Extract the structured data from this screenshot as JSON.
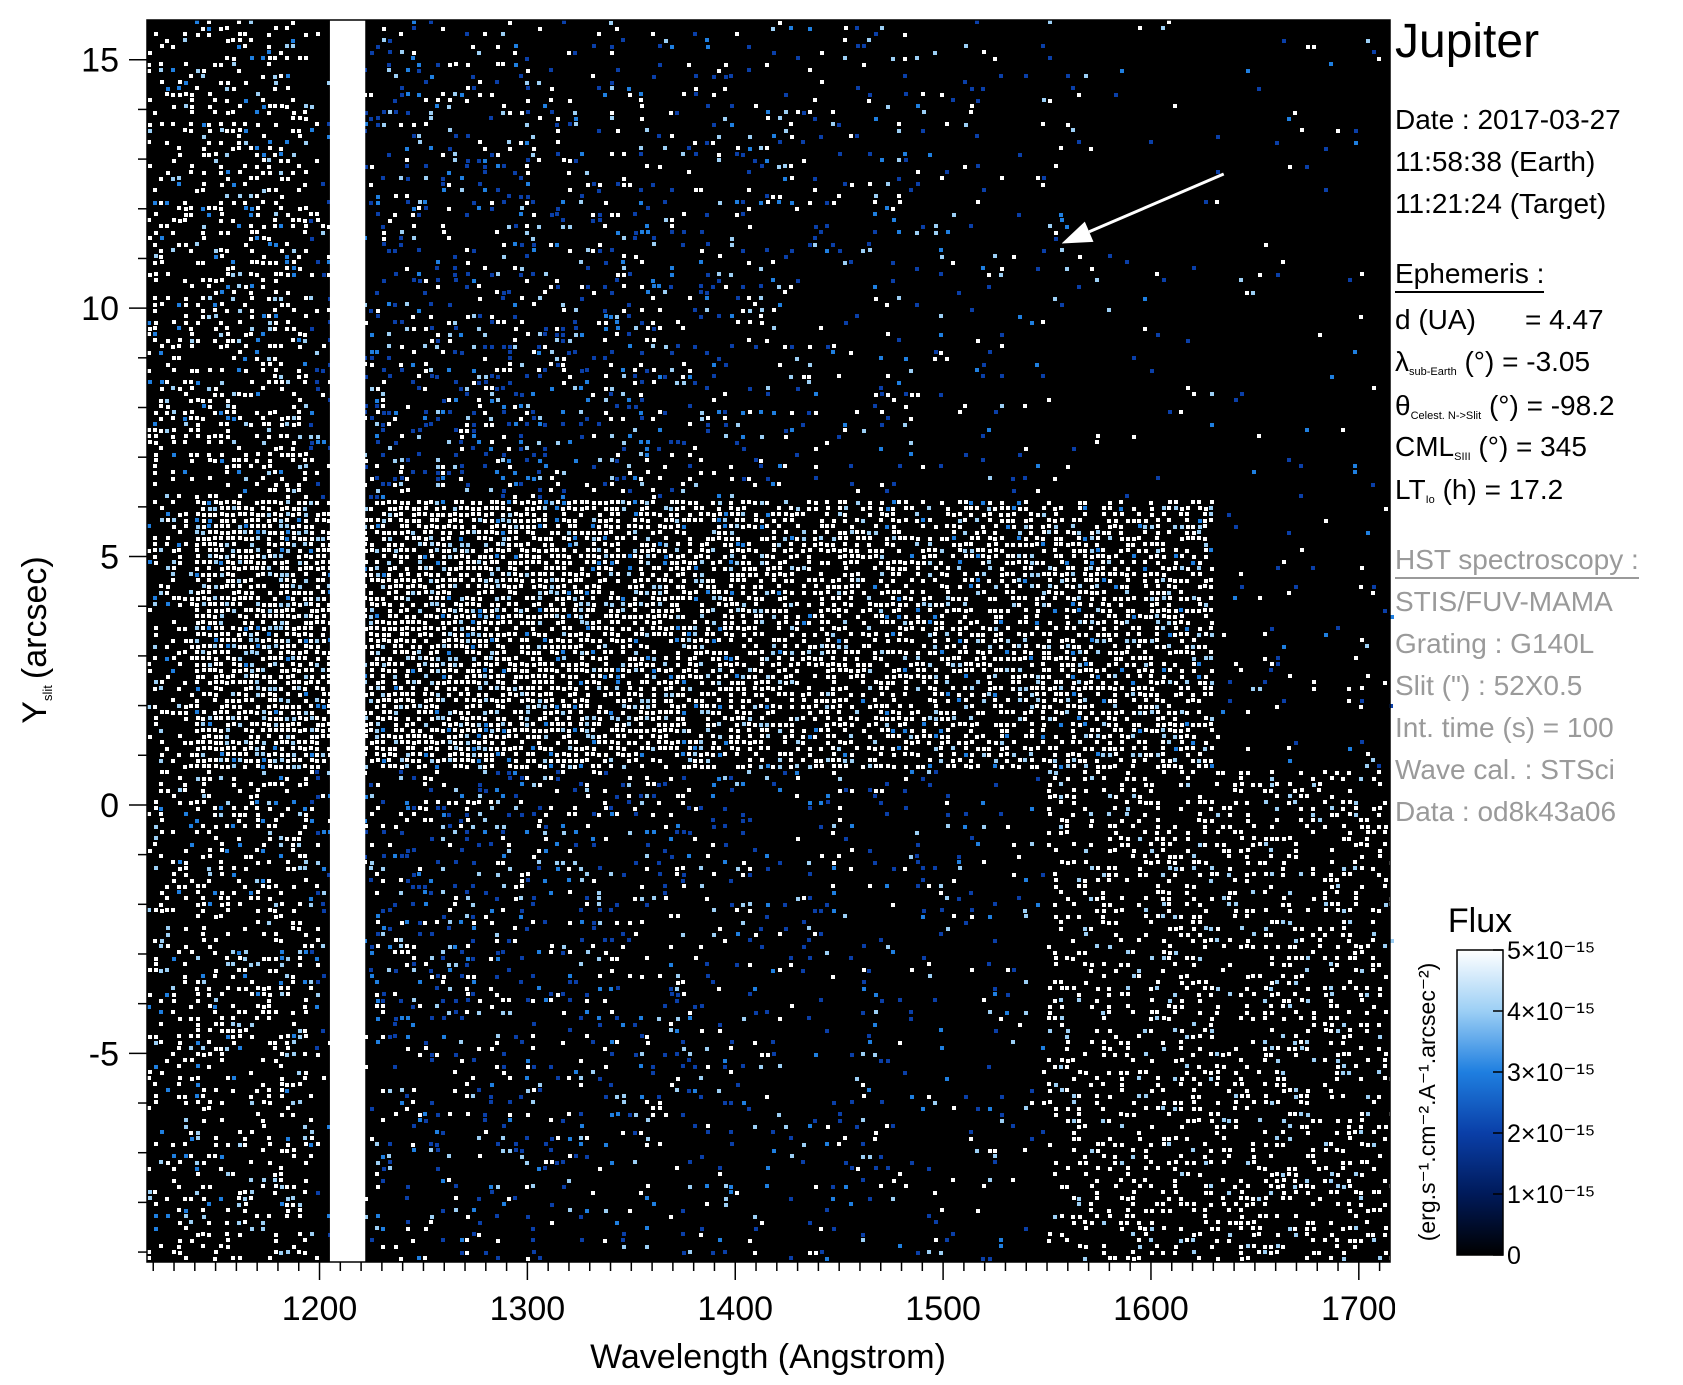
{
  "chart_data": {
    "type": "heatmap",
    "title": "Jupiter",
    "xlabel": "Wavelength (Angstrom)",
    "ylabel_main": "Y",
    "ylabel_sub": "slit",
    "ylabel_unit": "(arcsec)",
    "xlim": [
      1117,
      1715
    ],
    "ylim": [
      -9.2,
      15.8
    ],
    "x_ticks": [
      1200,
      1300,
      1400,
      1500,
      1600,
      1700
    ],
    "y_ticks": [
      15,
      10,
      5,
      0,
      -5
    ],
    "x_minor_step": 10,
    "y_minor_step": 1,
    "emission_line": {
      "x_start": 1205,
      "x_end": 1222
    },
    "emission_band": {
      "x_start": 1140,
      "x_end": 1630,
      "y_start": 0.8,
      "y_end": 6.2
    },
    "arrow": {
      "from": [
        1635,
        12.7
      ],
      "to": [
        1557,
        11.3
      ]
    },
    "colorbar": {
      "title": "Flux",
      "label": "(erg.s⁻¹.cm⁻².A⁻¹.arcsec⁻²)",
      "range": [
        0,
        5e-15
      ],
      "ticks": [
        {
          "value": 5e-15,
          "label": "5×10⁻¹⁵"
        },
        {
          "value": 4e-15,
          "label": "4×10⁻¹⁵"
        },
        {
          "value": 3e-15,
          "label": "3×10⁻¹⁵"
        },
        {
          "value": 2e-15,
          "label": "2×10⁻¹⁵"
        },
        {
          "value": 1e-15,
          "label": "1×10⁻¹⁵"
        },
        {
          "value": 0,
          "label": "0"
        }
      ],
      "colors": [
        "#000000",
        "#001a5a",
        "#0a3fa8",
        "#1f7fe0",
        "#9ccff5",
        "#ffffff"
      ]
    }
  },
  "info": {
    "title": "Jupiter",
    "date": "Date : 2017-03-27",
    "time_earth": "11:58:38 (Earth)",
    "time_target": "11:21:24 (Target)",
    "ephemeris_heading": "Ephemeris :",
    "ephemeris": [
      {
        "main": "d (UA)",
        "sub": "",
        "value": "= 4.47"
      },
      {
        "main": "λ",
        "sub": "sub-Earth",
        "value": "(°)  = -3.05"
      },
      {
        "main": "θ",
        "sub": "Celest. N->Slit",
        "value": "(°) = -98.2"
      },
      {
        "main": "CML",
        "sub": "SIII",
        "value": "(°) = 345"
      },
      {
        "main": "LT",
        "sub": "Io",
        "value": "(h) = 17.2"
      }
    ],
    "hst_heading": "HST spectroscopy :",
    "hst": [
      "STIS/FUV-MAMA",
      "Grating : G140L",
      "Slit (\") : 52X0.5",
      "Int. time (s) = 100",
      "Wave cal. : STSci",
      "Data : od8k43a06"
    ]
  }
}
